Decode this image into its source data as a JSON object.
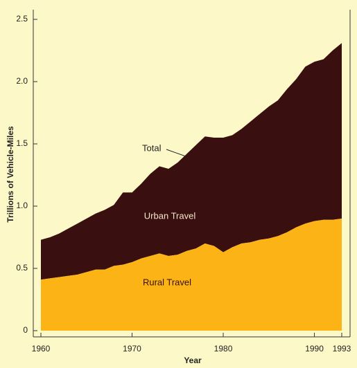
{
  "chart_data": {
    "type": "stacked-area",
    "x_label": "Year",
    "y_label": "Trillions of Vehicle-Miles",
    "x": [
      1960,
      1961,
      1962,
      1963,
      1964,
      1965,
      1966,
      1967,
      1968,
      1969,
      1970,
      1971,
      1972,
      1973,
      1974,
      1975,
      1976,
      1977,
      1978,
      1979,
      1980,
      1981,
      1982,
      1983,
      1984,
      1985,
      1986,
      1987,
      1988,
      1989,
      1990,
      1991,
      1992,
      1993
    ],
    "series": [
      {
        "name": "Rural Travel",
        "color": "#fbb316",
        "values": [
          0.41,
          0.42,
          0.43,
          0.44,
          0.45,
          0.47,
          0.49,
          0.49,
          0.52,
          0.53,
          0.55,
          0.58,
          0.6,
          0.62,
          0.6,
          0.61,
          0.64,
          0.66,
          0.7,
          0.68,
          0.63,
          0.67,
          0.7,
          0.71,
          0.73,
          0.74,
          0.76,
          0.79,
          0.83,
          0.86,
          0.88,
          0.89,
          0.89,
          0.9
        ]
      },
      {
        "name": "Urban Travel",
        "color": "#3a0f10",
        "values": [
          0.32,
          0.33,
          0.35,
          0.38,
          0.41,
          0.43,
          0.45,
          0.48,
          0.49,
          0.58,
          0.56,
          0.6,
          0.66,
          0.7,
          0.7,
          0.74,
          0.78,
          0.83,
          0.86,
          0.87,
          0.92,
          0.9,
          0.92,
          0.97,
          1.01,
          1.06,
          1.09,
          1.15,
          1.19,
          1.26,
          1.28,
          1.29,
          1.36,
          1.41
        ]
      }
    ],
    "annotation": "Total",
    "xlim": [
      1960,
      1993
    ],
    "xticks": [
      1960,
      1970,
      1980,
      1990,
      1993
    ],
    "ylim": [
      0,
      2.55
    ],
    "yticks": [
      0,
      0.5,
      {
        "value": 1,
        "label": "1.0"
      },
      1.5,
      {
        "value": 2,
        "label": "2.0"
      },
      2.5
    ]
  }
}
